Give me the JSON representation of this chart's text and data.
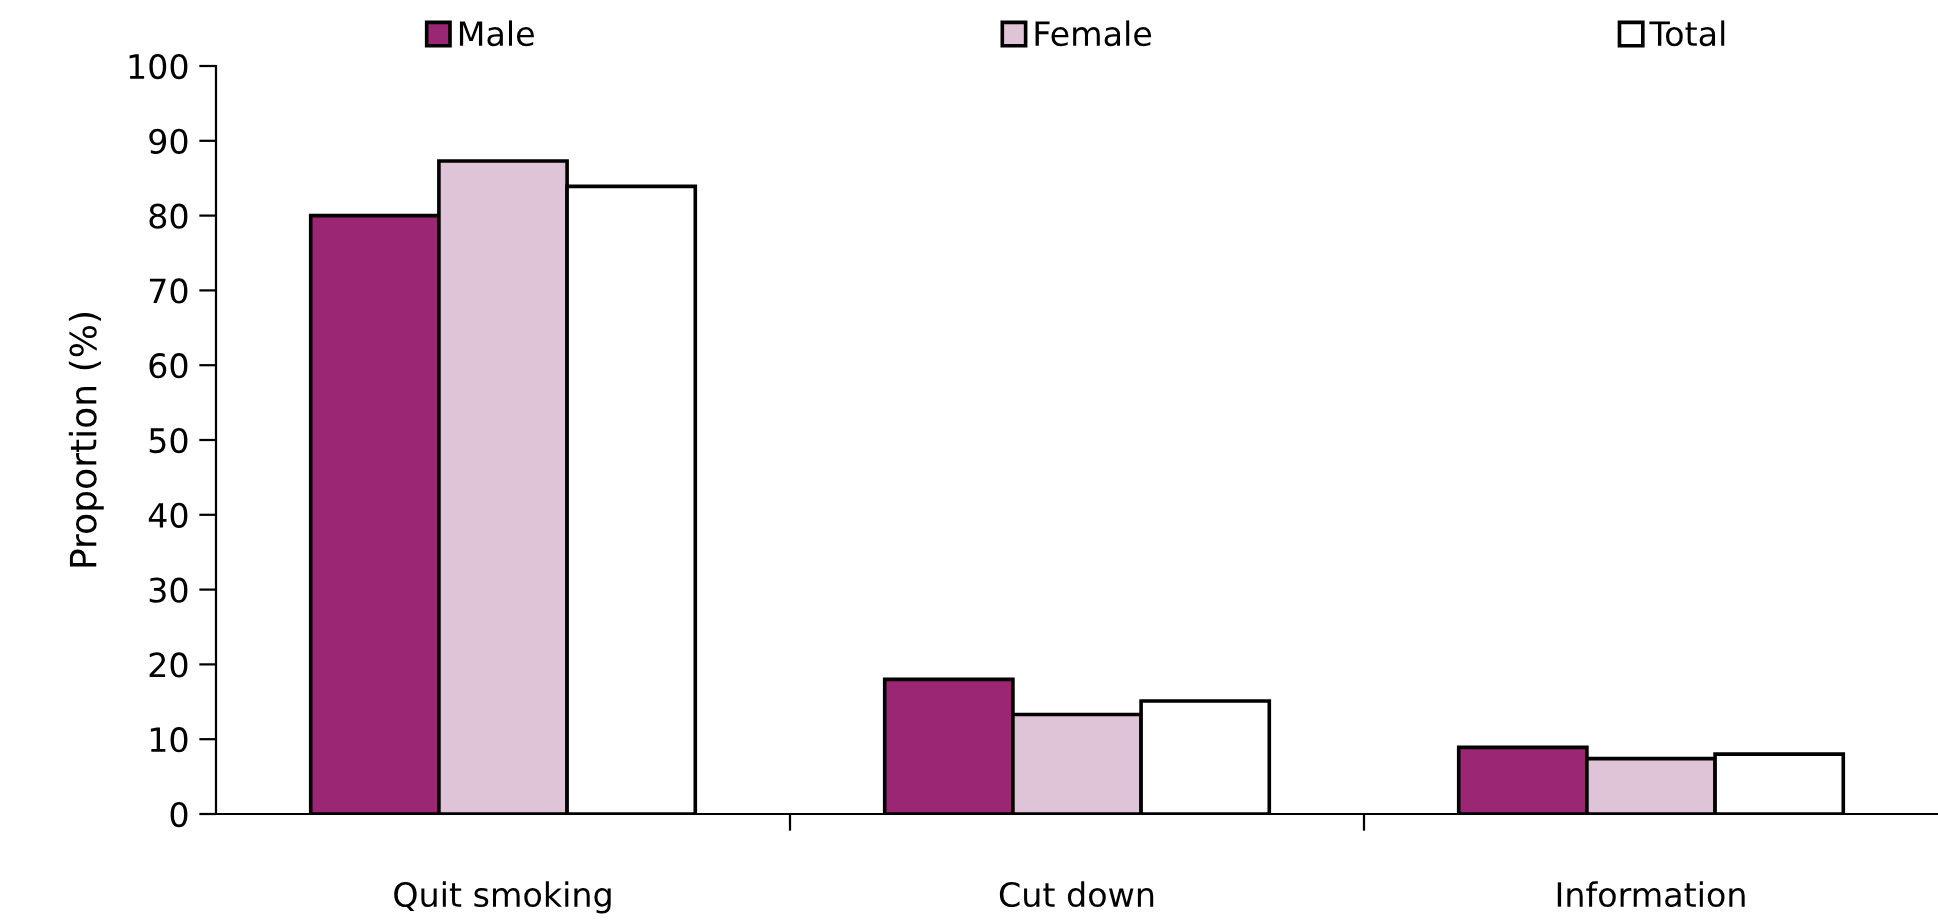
{
  "chart_data": {
    "type": "bar",
    "ylabel": "Proportion (%)",
    "categories": [
      "Quit smoking",
      "Cut down",
      "Information"
    ],
    "series": [
      {
        "name": "Male",
        "color": "#9b2674",
        "values": [
          80,
          18,
          8.9
        ]
      },
      {
        "name": "Female",
        "color": "#dfc3d7",
        "values": [
          87.3,
          13.3,
          7.4
        ]
      },
      {
        "name": "Total",
        "color": "#ffffff",
        "values": [
          83.9,
          15.1,
          8.0
        ]
      }
    ],
    "ylim": [
      0,
      100
    ],
    "yticks": [
      0,
      10,
      20,
      30,
      40,
      50,
      60,
      70,
      80,
      90,
      100
    ],
    "grid": false,
    "legend": "top"
  }
}
